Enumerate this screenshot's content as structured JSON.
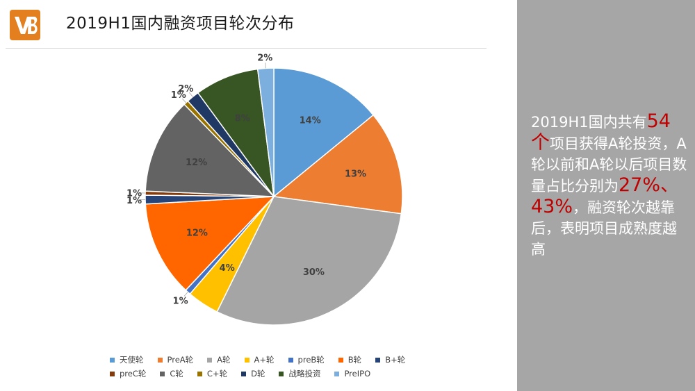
{
  "title": "2019H1国内融资项目轮次分布",
  "colors": {
    "logo_bg": "#e47f1f",
    "side_bg": "#a6a6a6",
    "highlight": "#c00000"
  },
  "chart_data": {
    "type": "pie",
    "slices": [
      {
        "name": "天使轮",
        "value": 14,
        "label": "14%",
        "color": "#5b9bd5"
      },
      {
        "name": "PreA轮",
        "value": 13,
        "label": "13%",
        "color": "#ed7d31"
      },
      {
        "name": "A轮",
        "value": 30,
        "label": "30%",
        "color": "#a5a5a5"
      },
      {
        "name": "A+轮",
        "value": 4,
        "label": "4%",
        "color": "#ffc000"
      },
      {
        "name": "preB轮",
        "value": 0.7,
        "label": "1%",
        "color": "#4472c4"
      },
      {
        "name": "B轮",
        "value": 12,
        "label": "12%",
        "color": "#ff6600"
      },
      {
        "name": "B+轮",
        "value": 1.1,
        "label": "1%",
        "color": "#264478"
      },
      {
        "name": "preC轮",
        "value": 0.5,
        "label": "1%",
        "color": "#843c0c"
      },
      {
        "name": "C轮",
        "value": 12,
        "label": "12%",
        "color": "#636363"
      },
      {
        "name": "C+轮",
        "value": 0.6,
        "label": "1%",
        "color": "#997300"
      },
      {
        "name": "D轮",
        "value": 1.6,
        "label": "2%",
        "color": "#1f3864"
      },
      {
        "name": "战略投资",
        "value": 8,
        "label": "8%",
        "color": "#375623"
      },
      {
        "name": "PreIPO",
        "value": 2,
        "label": "2%",
        "color": "#7cafdd"
      }
    ],
    "legend_placement": "bottom"
  },
  "side_text": {
    "p1": "2019H1国内共有",
    "n1": "54",
    "n2": "个",
    "p2": "项目获得A轮投资，A轮以前和A轮以后项目数量占比分别为",
    "n3": "27%、43%",
    "p3": "，融资轮次越靠后，表明项目成熟度越高"
  }
}
